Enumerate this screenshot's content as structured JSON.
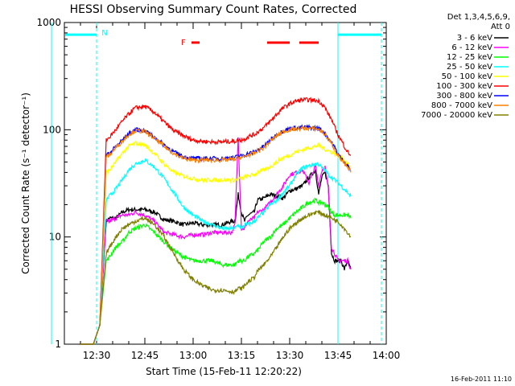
{
  "chart_data": {
    "type": "line",
    "title": "HESSI Observing Summary Count Rates, Corrected",
    "xlabel": "Start Time (15-Feb-11 12:20:22)",
    "ylabel": "Corrected Count Rate (s⁻¹ detector⁻¹)",
    "x_unit": "minutes after 12:20",
    "xlim": [
      0,
      100
    ],
    "ylim": [
      1,
      1000
    ],
    "y_scale": "log",
    "x_ticks": [
      {
        "label": "12:30",
        "value": 10
      },
      {
        "label": "12:45",
        "value": 25
      },
      {
        "label": "13:00",
        "value": 40
      },
      {
        "label": "13:15",
        "value": 55
      },
      {
        "label": "13:30",
        "value": 70
      },
      {
        "label": "13:45",
        "value": 85
      },
      {
        "label": "14:00",
        "value": 100
      }
    ],
    "y_ticks": [
      {
        "label": "1",
        "value": 1
      },
      {
        "label": "10",
        "value": 10
      },
      {
        "label": "100",
        "value": 100
      },
      {
        "label": "1000",
        "value": 1000
      }
    ],
    "legend": {
      "header": [
        "Det 1,3,4,5,6,9,",
        "Att 0"
      ],
      "placement": "right"
    },
    "series": [
      {
        "name": "3 - 6 keV",
        "color": "#000000",
        "x": [
          5,
          6,
          7,
          8,
          9,
          11,
          13,
          14,
          16,
          18,
          20,
          22,
          25,
          28,
          31,
          34,
          37,
          40,
          43,
          46,
          49,
          52,
          53,
          54,
          55,
          56,
          57,
          59,
          60,
          62,
          64,
          66,
          68,
          70,
          72,
          74,
          76,
          78,
          79,
          80,
          81,
          82,
          83,
          84,
          85,
          86,
          87,
          88,
          89
        ],
        "y": [
          1,
          1,
          1,
          1,
          1,
          1.5,
          14,
          15,
          15,
          17,
          18,
          18,
          18,
          17,
          14.5,
          14,
          13,
          13.5,
          13,
          13,
          13,
          14,
          14,
          25,
          17,
          14,
          16,
          17,
          22,
          23,
          25,
          24,
          23,
          27,
          28,
          30,
          36,
          42,
          25,
          36,
          40,
          30,
          7,
          6,
          6,
          6,
          5,
          6,
          5
        ]
      },
      {
        "name": "6 - 12 keV",
        "color": "#ff00ff",
        "x": [
          5,
          6,
          7,
          8,
          9,
          11,
          13,
          14,
          16,
          18,
          20,
          22,
          25,
          28,
          31,
          34,
          37,
          40,
          43,
          46,
          49,
          52,
          53,
          54,
          55,
          56,
          57,
          59,
          60,
          62,
          64,
          66,
          68,
          70,
          72,
          74,
          76,
          78,
          79,
          80,
          81,
          82,
          83,
          84,
          85,
          86,
          87,
          88,
          89
        ],
        "y": [
          1,
          1,
          1,
          1,
          1,
          1.5,
          14,
          14,
          15,
          16,
          16,
          17,
          16,
          14,
          11,
          10.5,
          10,
          10.5,
          10.5,
          11,
          11,
          11,
          13,
          85,
          12,
          12,
          14,
          15,
          17,
          18,
          21,
          25,
          30,
          38,
          40,
          42,
          32,
          46,
          30,
          42,
          45,
          28,
          8,
          7,
          6,
          6,
          6,
          6,
          5
        ]
      },
      {
        "name": "12 - 25 keV",
        "color": "#00ff00",
        "x": [
          5,
          6,
          7,
          8,
          9,
          11,
          13,
          14,
          16,
          18,
          20,
          22,
          25,
          28,
          31,
          34,
          37,
          40,
          43,
          46,
          49,
          52,
          53,
          54,
          55,
          56,
          57,
          59,
          60,
          62,
          64,
          66,
          68,
          70,
          72,
          74,
          76,
          78,
          79,
          80,
          81,
          82,
          83,
          84,
          85,
          86,
          87,
          88,
          89
        ],
        "y": [
          1,
          1,
          1,
          1,
          1,
          1.5,
          6,
          6.5,
          8,
          9,
          11,
          12,
          13,
          11,
          9,
          7.5,
          6.5,
          6,
          6,
          6,
          5.5,
          5.5,
          5.5,
          6,
          6,
          6,
          6.5,
          7,
          7.5,
          9,
          10,
          12,
          13,
          15,
          17,
          19,
          21,
          22,
          21,
          21,
          20,
          19,
          17,
          16,
          16,
          16,
          16,
          16,
          15
        ]
      },
      {
        "name": "25 - 50 keV",
        "color": "#00ffff",
        "x": [
          5,
          6,
          7,
          8,
          9,
          11,
          13,
          14,
          16,
          18,
          20,
          22,
          25,
          28,
          31,
          34,
          37,
          40,
          43,
          46,
          49,
          52,
          53,
          54,
          55,
          56,
          57,
          59,
          60,
          62,
          64,
          66,
          68,
          70,
          72,
          74,
          76,
          78,
          79,
          80,
          81,
          82,
          83,
          84,
          85,
          86,
          87,
          88,
          89
        ],
        "y": [
          1,
          1,
          1,
          1,
          1,
          1.5,
          22,
          24,
          28,
          34,
          42,
          48,
          52,
          45,
          35,
          26,
          19,
          16,
          14,
          13,
          12,
          12,
          12,
          13,
          12,
          13,
          13,
          14,
          15,
          17,
          20,
          22,
          26,
          30,
          38,
          44,
          46,
          48,
          48,
          44,
          42,
          38,
          36,
          34,
          32,
          30,
          28,
          26,
          24
        ]
      },
      {
        "name": "50 - 100 keV",
        "color": "#ffff00",
        "x": [
          5,
          6,
          7,
          8,
          9,
          11,
          13,
          14,
          16,
          18,
          20,
          22,
          25,
          28,
          31,
          34,
          37,
          40,
          43,
          46,
          49,
          52,
          53,
          54,
          55,
          56,
          57,
          59,
          60,
          62,
          64,
          66,
          68,
          70,
          72,
          74,
          76,
          78,
          79,
          80,
          81,
          82,
          83,
          84,
          85,
          86,
          87,
          88,
          89
        ],
        "y": [
          1,
          1,
          1,
          1,
          1,
          1.5,
          40,
          42,
          50,
          60,
          70,
          75,
          72,
          60,
          48,
          40,
          37,
          35,
          34,
          34,
          34,
          34,
          34,
          35,
          35,
          36,
          37,
          38,
          40,
          42,
          45,
          50,
          55,
          58,
          62,
          65,
          68,
          70,
          72,
          68,
          66,
          64,
          62,
          60,
          58,
          56,
          52,
          48,
          44
        ]
      },
      {
        "name": "100 - 300 keV",
        "color": "#ff0000",
        "x": [
          5,
          6,
          7,
          8,
          9,
          11,
          13,
          14,
          16,
          18,
          20,
          22,
          25,
          28,
          31,
          34,
          37,
          40,
          43,
          46,
          49,
          52,
          53,
          54,
          55,
          56,
          57,
          59,
          60,
          62,
          64,
          66,
          68,
          70,
          72,
          74,
          76,
          78,
          79,
          80,
          81,
          82,
          83,
          84,
          85,
          86,
          87,
          88,
          89
        ],
        "y": [
          1,
          1,
          1,
          1,
          1,
          1.5,
          80,
          85,
          100,
          120,
          140,
          160,
          165,
          145,
          118,
          98,
          88,
          80,
          78,
          77,
          77,
          78,
          78,
          80,
          80,
          82,
          86,
          90,
          95,
          105,
          120,
          140,
          160,
          175,
          185,
          190,
          190,
          188,
          185,
          175,
          160,
          140,
          125,
          105,
          90,
          80,
          70,
          62,
          58
        ]
      },
      {
        "name": "300 - 800 keV",
        "color": "#0000ff",
        "x": [
          5,
          6,
          7,
          8,
          9,
          11,
          13,
          14,
          16,
          18,
          20,
          22,
          25,
          28,
          31,
          34,
          37,
          40,
          43,
          46,
          49,
          52,
          53,
          54,
          55,
          56,
          57,
          59,
          60,
          62,
          64,
          66,
          68,
          70,
          72,
          74,
          76,
          78,
          79,
          80,
          81,
          82,
          83,
          84,
          85,
          86,
          87,
          88,
          89
        ],
        "y": [
          1,
          1,
          1,
          1,
          1,
          1.5,
          58,
          60,
          70,
          80,
          92,
          100,
          98,
          85,
          72,
          62,
          56,
          54,
          54,
          54,
          54,
          55,
          55,
          57,
          57,
          58,
          60,
          62,
          65,
          70,
          80,
          90,
          98,
          102,
          104,
          105,
          105,
          104,
          103,
          98,
          92,
          84,
          76,
          68,
          60,
          54,
          50,
          46,
          42
        ]
      },
      {
        "name": "800 - 7000 keV",
        "color": "#ff8000",
        "x": [
          5,
          6,
          7,
          8,
          9,
          11,
          13,
          14,
          16,
          18,
          20,
          22,
          25,
          28,
          31,
          34,
          37,
          40,
          43,
          46,
          49,
          52,
          53,
          54,
          55,
          56,
          57,
          59,
          60,
          62,
          64,
          66,
          68,
          70,
          72,
          74,
          76,
          78,
          79,
          80,
          81,
          82,
          83,
          84,
          85,
          86,
          87,
          88,
          89
        ],
        "y": [
          1,
          1,
          1,
          1,
          1,
          1.5,
          56,
          58,
          68,
          78,
          90,
          98,
          96,
          83,
          70,
          60,
          54,
          52,
          52,
          52,
          52,
          53,
          53,
          55,
          55,
          56,
          58,
          60,
          63,
          68,
          78,
          88,
          96,
          100,
          102,
          103,
          103,
          102,
          101,
          96,
          90,
          82,
          74,
          66,
          58,
          52,
          48,
          44,
          40
        ]
      },
      {
        "name": "7000 - 20000 keV",
        "color": "#808000",
        "x": [
          5,
          6,
          7,
          8,
          9,
          11,
          13,
          14,
          16,
          18,
          20,
          22,
          25,
          28,
          31,
          34,
          37,
          40,
          43,
          46,
          49,
          52,
          53,
          54,
          55,
          56,
          57,
          59,
          60,
          62,
          64,
          66,
          68,
          70,
          72,
          74,
          76,
          78,
          79,
          80,
          81,
          82,
          83,
          84,
          85,
          86,
          87,
          88,
          89
        ],
        "y": [
          1,
          1,
          1,
          1,
          1,
          1.5,
          7,
          8,
          10,
          12,
          13,
          14,
          15,
          13,
          10,
          7,
          5,
          4,
          3.5,
          3.2,
          3.2,
          3.1,
          3.1,
          3.3,
          3.3,
          3.5,
          3.8,
          4.2,
          4.8,
          5.5,
          6.5,
          8,
          10,
          12,
          13.5,
          15,
          16,
          17,
          17,
          16.5,
          16,
          15.5,
          15,
          14.5,
          14,
          13,
          12,
          11,
          10
        ]
      }
    ],
    "annotations": [
      {
        "text": "N",
        "x": 12.5,
        "y": 800,
        "color": "#00ffff"
      },
      {
        "text": "F",
        "x": 37,
        "y": 650,
        "color": "#ff0000"
      }
    ],
    "intervals": [
      {
        "flag": "night",
        "color": "#00ffff",
        "y": 770,
        "spans": [
          [
            -4,
            10
          ],
          [
            85,
            98.5
          ]
        ]
      },
      {
        "flag": "flare",
        "color": "#ff0000",
        "y": 650,
        "spans": [
          [
            39.5,
            42
          ],
          [
            63,
            70
          ],
          [
            73,
            79
          ]
        ]
      }
    ],
    "vlines": [
      {
        "x": 10,
        "color": "#00ffff",
        "style": "dashed"
      },
      {
        "x": 85,
        "color": "#00ffff",
        "style": "solid"
      },
      {
        "x": 98.5,
        "color": "#00ffff",
        "style": "dashed"
      },
      {
        "x": -4,
        "color": "#00ffff",
        "style": "solid"
      }
    ],
    "grid": false
  },
  "timestamp": "16-Feb-2011 11:10"
}
